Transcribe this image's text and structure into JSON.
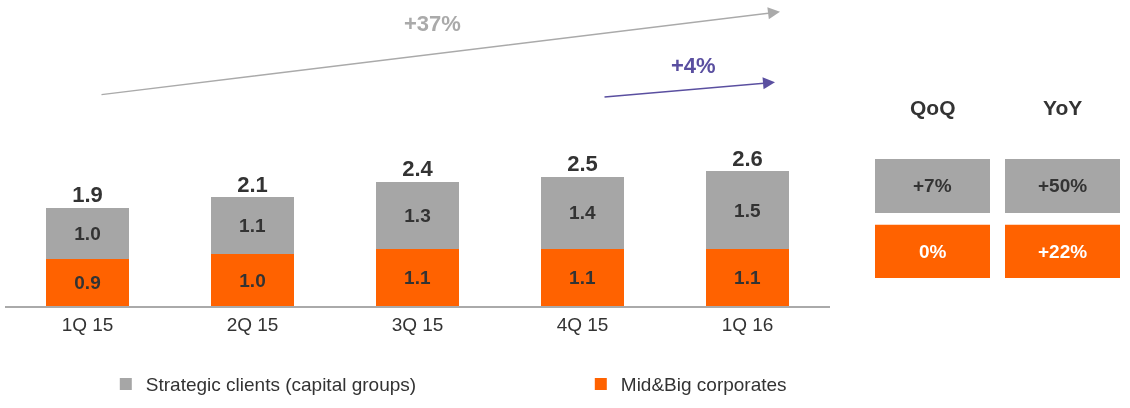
{
  "chart_data": {
    "type": "bar",
    "stacked": true,
    "legend": "bottom",
    "tick_labels": "x",
    "categories": [
      "1Q 15",
      "2Q 15",
      "3Q 15",
      "4Q 15",
      "1Q 16"
    ],
    "series": [
      {
        "name": "Mid&Big corporates",
        "color": "#ff6200",
        "values": [
          0.9,
          1.0,
          1.1,
          1.1,
          1.1
        ],
        "value_labels": [
          "0.9",
          "1.0",
          "1.1",
          "1.1",
          "1.1"
        ]
      },
      {
        "name": "Strategic clients (capital groups)",
        "color": "#a6a6a6",
        "values": [
          1.0,
          1.1,
          1.3,
          1.4,
          1.5
        ],
        "value_labels": [
          "1.0",
          "1.1",
          "1.3",
          "1.4",
          "1.5"
        ]
      }
    ],
    "totals": [
      "1.9",
      "2.1",
      "2.4",
      "2.5",
      "2.6"
    ],
    "annotations": [
      "+37%",
      "+4%",
      "QoQ",
      "YoY",
      "+7%",
      "+50%",
      "0%",
      "+22%"
    ]
  }
}
